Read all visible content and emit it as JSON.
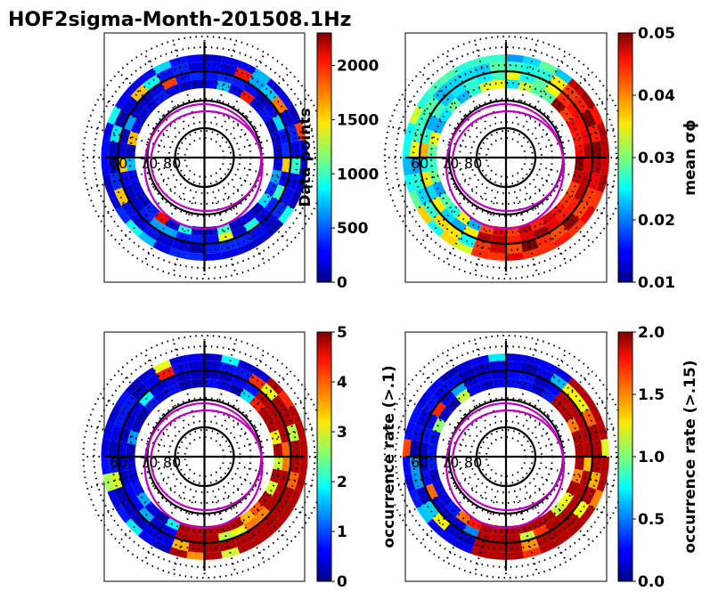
{
  "figure_title": "HOF2sigma-Month-201508.1Hz",
  "colors": {
    "magenta": "#c000c0",
    "black": "#000000"
  },
  "colormap": "jet",
  "chart_data": [
    {
      "type": "heatmap",
      "projection": "polar",
      "title": "",
      "latitude_labels": [
        "60",
        "70",
        "80"
      ],
      "colorbar": {
        "label": "Data points",
        "range": [
          0,
          2300
        ],
        "ticks": [
          0,
          500,
          1000,
          1500,
          2000
        ],
        "tick_labels": [
          "0",
          "500",
          "1000",
          "1500",
          "2000"
        ]
      },
      "pattern": "uniform_low"
    },
    {
      "type": "heatmap",
      "projection": "polar",
      "title": "",
      "latitude_labels": [
        "60",
        "70",
        "80"
      ],
      "colorbar": {
        "label": "mean σϕ",
        "range": [
          0.01,
          0.05
        ],
        "ticks": [
          0.01,
          0.02,
          0.03,
          0.04,
          0.05
        ],
        "tick_labels": [
          "0.01",
          "0.02",
          "0.03",
          "0.04",
          "0.05"
        ]
      },
      "pattern": "high_night"
    },
    {
      "type": "heatmap",
      "projection": "polar",
      "title": "",
      "latitude_labels": [
        "60",
        "70",
        "80"
      ],
      "colorbar": {
        "label": "occurrence rate (>.1)",
        "range": [
          0,
          5
        ],
        "ticks": [
          0,
          1,
          2,
          3,
          4,
          5
        ],
        "tick_labels": [
          "0",
          "1",
          "2",
          "3",
          "4",
          "5"
        ]
      },
      "pattern": "night_sector"
    },
    {
      "type": "heatmap",
      "projection": "polar",
      "title": "",
      "latitude_labels": [
        "60",
        "70",
        "80"
      ],
      "colorbar": {
        "label": "occurrence rate (>.15)",
        "range": [
          0,
          2
        ],
        "ticks": [
          0.0,
          0.5,
          1.0,
          1.5,
          2.0
        ],
        "tick_labels": [
          "0.0",
          "0.5",
          "1.0",
          "1.5",
          "2.0"
        ]
      },
      "pattern": "night_sector"
    }
  ]
}
